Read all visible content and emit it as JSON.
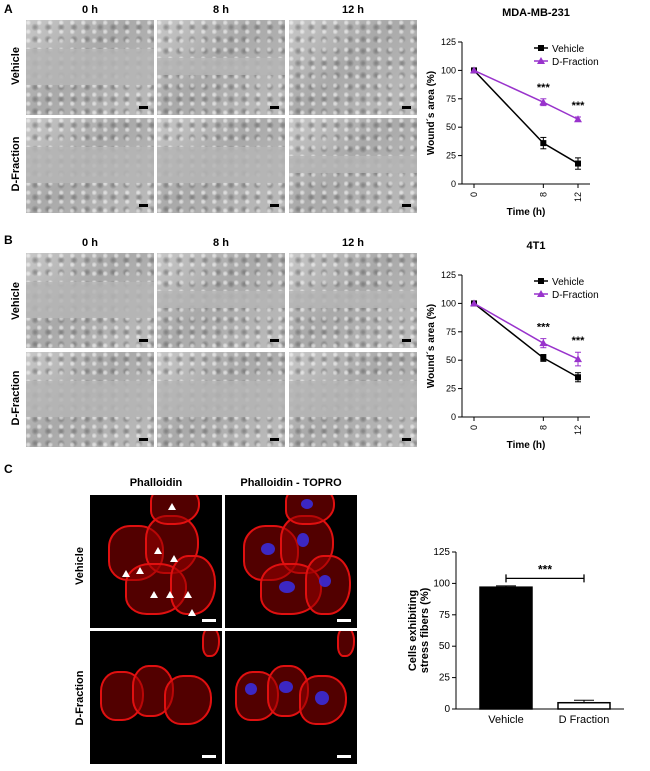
{
  "panels": {
    "A": {
      "label": "A",
      "times": [
        "0 h",
        "8 h",
        "12 h"
      ],
      "rows": [
        "Vehicle",
        "D-Fraction"
      ]
    },
    "B": {
      "label": "B",
      "times": [
        "0 h",
        "8 h",
        "12 h"
      ],
      "rows": [
        "Vehicle",
        "D-Fraction"
      ]
    },
    "C": {
      "label": "C",
      "columns": [
        "Phalloidin",
        "Phalloidin - TOPRO"
      ],
      "rows": [
        "Vehicle",
        "D-Fraction"
      ]
    }
  },
  "colors": {
    "vehicle": "#000000",
    "dfraction": "#9933cc",
    "red": "#e01010",
    "blue": "#3a2bd8"
  },
  "chart_data": [
    {
      "type": "line",
      "title": "MDA-MB-231",
      "xlabel": "Time (h)",
      "ylabel": "Wound´s area (%)",
      "x": [
        0,
        8,
        12
      ],
      "xticks": [
        "0",
        "8",
        "12"
      ],
      "ylim": [
        0,
        125
      ],
      "yticks": [
        0,
        25,
        50,
        75,
        100,
        125
      ],
      "legend": "top-right",
      "series": [
        {
          "name": "Vehicle",
          "values": [
            100,
            36,
            18
          ],
          "errors": [
            0,
            5,
            5
          ],
          "marker": "square",
          "color": "#000000"
        },
        {
          "name": "D-Fraction",
          "values": [
            100,
            72,
            57
          ],
          "errors": [
            0,
            3,
            2
          ],
          "marker": "triangle",
          "color": "#9933cc"
        }
      ],
      "annotations": [
        "***",
        "***"
      ]
    },
    {
      "type": "line",
      "title": "4T1",
      "xlabel": "Time (h)",
      "ylabel": "Wound´s area (%)",
      "x": [
        0,
        8,
        12
      ],
      "xticks": [
        "0",
        "8",
        "12"
      ],
      "ylim": [
        0,
        125
      ],
      "yticks": [
        0,
        25,
        50,
        75,
        100,
        125
      ],
      "legend": "top-right",
      "series": [
        {
          "name": "Vehicle",
          "values": [
            100,
            52,
            35
          ],
          "errors": [
            0,
            3,
            4
          ],
          "marker": "square",
          "color": "#000000"
        },
        {
          "name": "D-Fraction",
          "values": [
            100,
            65,
            51
          ],
          "errors": [
            0,
            4,
            6
          ],
          "marker": "triangle",
          "color": "#9933cc"
        }
      ],
      "annotations": [
        "***",
        "***"
      ]
    },
    {
      "type": "bar",
      "title": "",
      "categories": [
        "Vehicle",
        "D Fraction"
      ],
      "values": [
        97,
        5
      ],
      "errors": [
        1,
        2
      ],
      "ylabel": "Cells exhibiting stress fibers (%)",
      "ylim": [
        0,
        125
      ],
      "yticks": [
        0,
        25,
        50,
        75,
        100,
        125
      ],
      "annotation": "***"
    }
  ]
}
